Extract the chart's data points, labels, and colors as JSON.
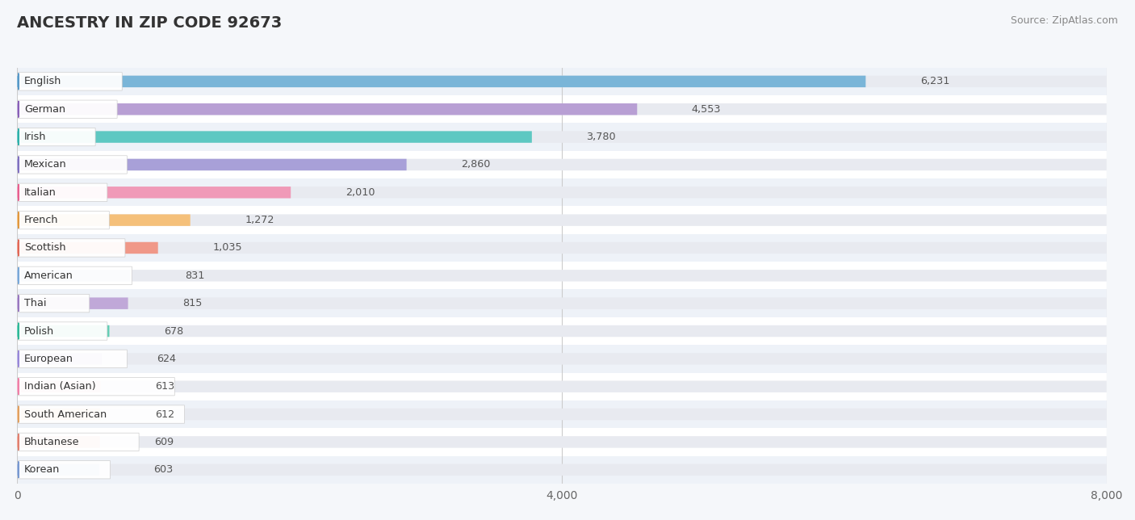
{
  "title": "ANCESTRY IN ZIP CODE 92673",
  "source": "Source: ZipAtlas.com",
  "categories": [
    "English",
    "German",
    "Irish",
    "Mexican",
    "Italian",
    "French",
    "Scottish",
    "American",
    "Thai",
    "Polish",
    "European",
    "Indian (Asian)",
    "South American",
    "Bhutanese",
    "Korean"
  ],
  "values": [
    6231,
    4553,
    3780,
    2860,
    2010,
    1272,
    1035,
    831,
    815,
    678,
    624,
    613,
    612,
    609,
    603
  ],
  "bar_colors": [
    "#7ab5d8",
    "#b89fd4",
    "#5ec8c2",
    "#a8a0d8",
    "#f09ab8",
    "#f5c07a",
    "#f09888",
    "#a8c4e8",
    "#c0a8d8",
    "#5ecfb4",
    "#b8b0e8",
    "#f4a8c4",
    "#f5c090",
    "#f0a898",
    "#a0b8e0"
  ],
  "circle_colors": [
    "#5898c8",
    "#8860b8",
    "#30b0aa",
    "#8070c0",
    "#e86090",
    "#e09840",
    "#e06858",
    "#78a8d8",
    "#9878c0",
    "#30b898",
    "#9888d8",
    "#f080a8",
    "#e0a060",
    "#e08070",
    "#7898d0"
  ],
  "row_bg_colors": [
    "#eef2f8",
    "#ffffff"
  ],
  "xlim": [
    0,
    8000
  ],
  "xticks": [
    0,
    4000,
    8000
  ],
  "background_color": "#f5f7fa",
  "bar_bg_color": "#e8eaf0"
}
